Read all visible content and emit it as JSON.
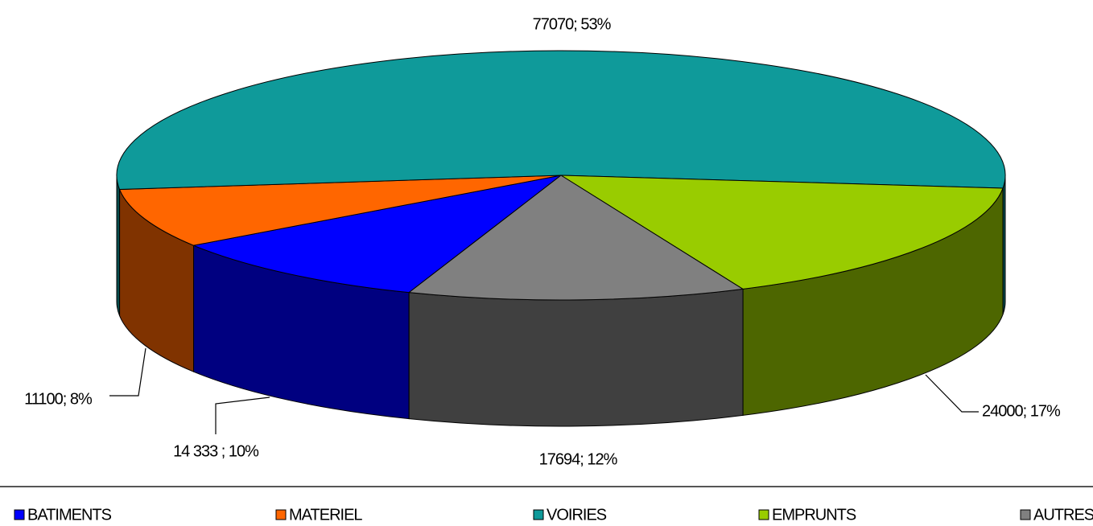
{
  "chart_data": {
    "type": "pie3d",
    "categories": [
      "BATIMENTS",
      "MATERIEL",
      "VOIRIES",
      "EMPRUNTS",
      "AUTRES"
    ],
    "values": [
      14333,
      11100,
      77070,
      24000,
      17694
    ],
    "value_labels": [
      "14 333  ; 10%",
      "11100; 8%",
      "77070; 53%",
      "24000; 17%",
      "17694; 12%"
    ],
    "colors": [
      "#0000ff",
      "#ff6600",
      "#0f9a9a",
      "#99cc00",
      "#808080"
    ],
    "legend": "bottom"
  }
}
